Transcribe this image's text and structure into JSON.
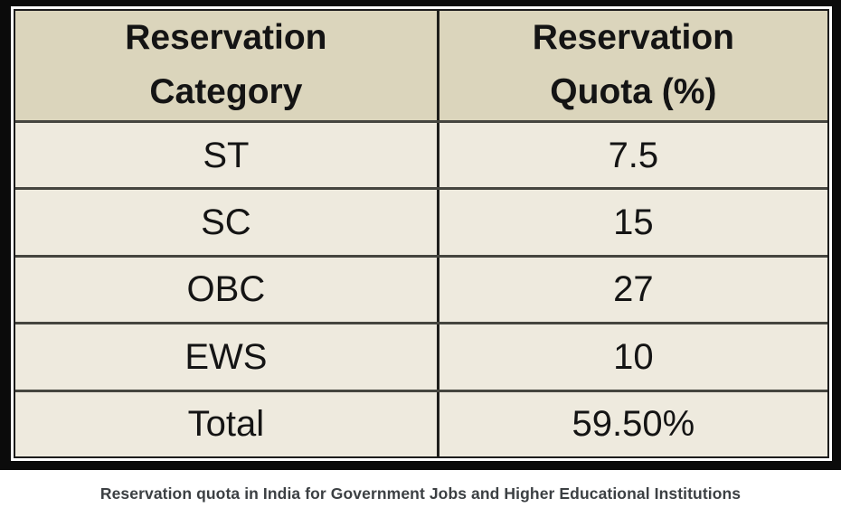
{
  "chart_data": {
    "type": "table",
    "title": "Reservation quota in India for Government Jobs and Higher Educational Institutions",
    "columns": [
      "Reservation Category",
      "Reservation Quota (%)"
    ],
    "rows": [
      [
        "ST",
        "7.5"
      ],
      [
        "SC",
        "15"
      ],
      [
        "OBC",
        "27"
      ],
      [
        "EWS",
        "10"
      ],
      [
        "Total",
        "59.50%"
      ]
    ]
  },
  "table": {
    "header": {
      "col1": {
        "line1": "Reservation",
        "line2": "Category"
      },
      "col2": {
        "line1": "Reservation",
        "line2": "Quota (%)"
      }
    },
    "rows": [
      {
        "category": "ST",
        "quota": "7.5"
      },
      {
        "category": "SC",
        "quota": "15"
      },
      {
        "category": "OBC",
        "quota": "27"
      },
      {
        "category": "EWS",
        "quota": "10"
      },
      {
        "category": "Total",
        "quota": "59.50%"
      }
    ]
  },
  "caption": "Reservation quota in India for Government Jobs and Higher Educational Institutions",
  "colors": {
    "frame_black": "#0b0b0b",
    "inner_line": "#1c1c1c",
    "header_bg": "#dbd5bc",
    "row_bg": "#eeeade",
    "row_divider": "#45453f",
    "col_divider": "#1f1f1c",
    "text_color": "#141414",
    "caption_color": "#3c4043",
    "page_bg": "#ffffff"
  }
}
